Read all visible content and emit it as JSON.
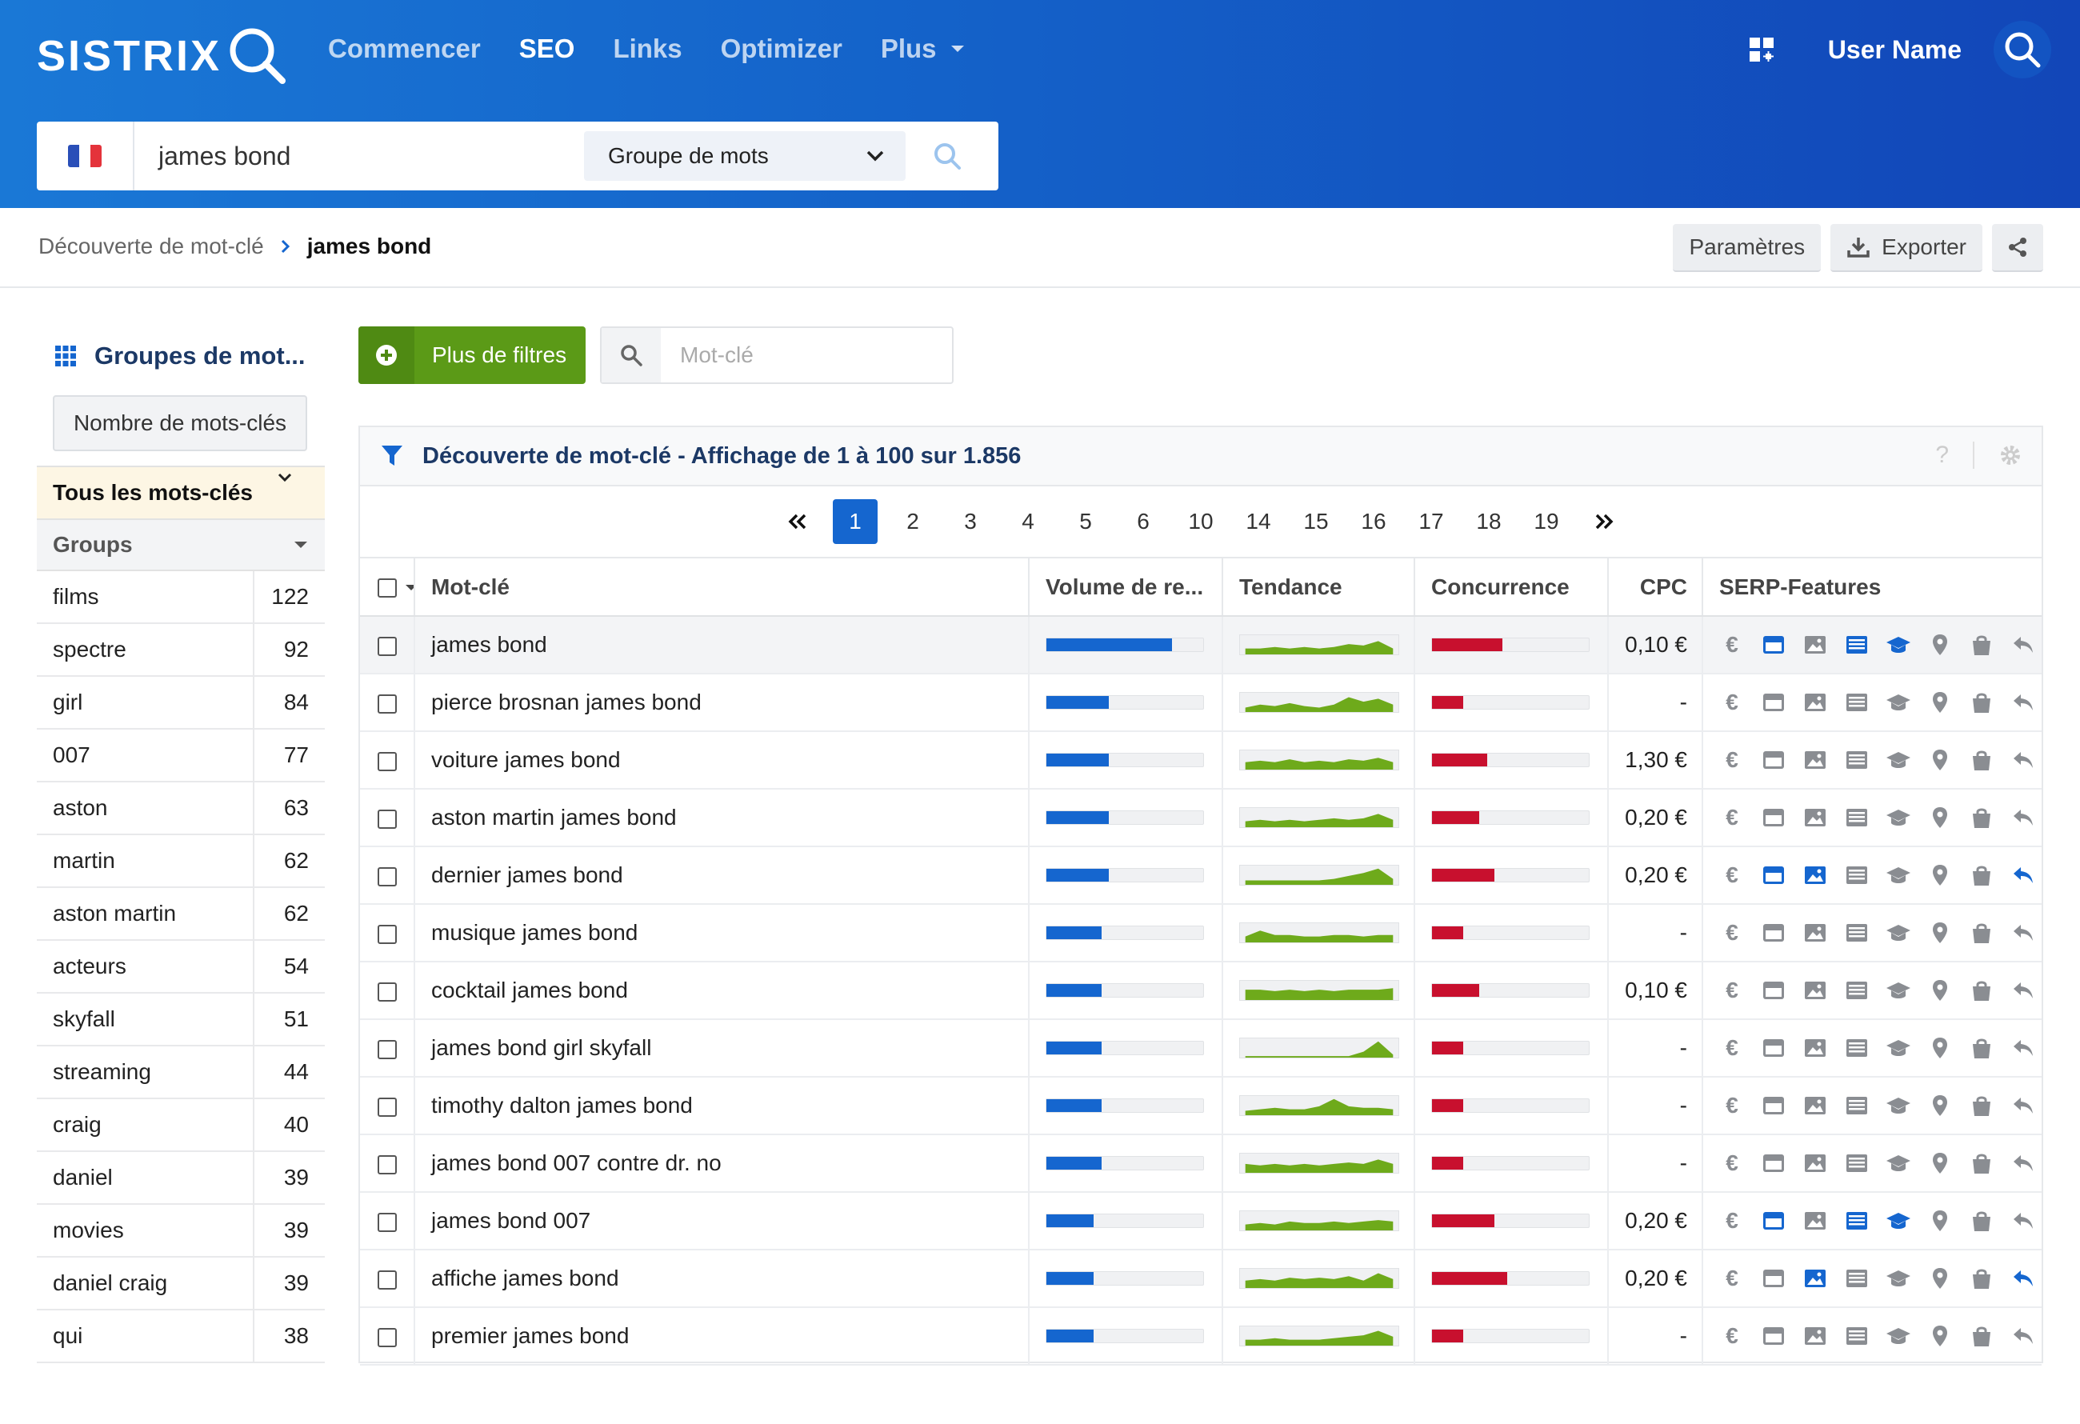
{
  "header": {
    "logo": "SISTRIX",
    "nav": [
      "Commencer",
      "SEO",
      "Links",
      "Optimizer",
      "Plus"
    ],
    "active_nav": "SEO",
    "user_name": "User Name"
  },
  "search": {
    "country": "France",
    "query": "james bond",
    "mode": "Groupe de mots"
  },
  "breadcrumb": {
    "parent": "Découverte de mot-clé",
    "current": "james bond"
  },
  "actions": {
    "settings": "Paramètres",
    "export": "Exporter"
  },
  "sidebar": {
    "title": "Groupes de mot...",
    "sort_button": "Nombre de mots-clés",
    "all_keywords": "Tous les mots-clés",
    "groups_label": "Groups",
    "groups": [
      {
        "name": "films",
        "count": "122"
      },
      {
        "name": "spectre",
        "count": "92"
      },
      {
        "name": "girl",
        "count": "84"
      },
      {
        "name": "007",
        "count": "77"
      },
      {
        "name": "aston",
        "count": "63"
      },
      {
        "name": "martin",
        "count": "62"
      },
      {
        "name": "aston martin",
        "count": "62"
      },
      {
        "name": "acteurs",
        "count": "54"
      },
      {
        "name": "skyfall",
        "count": "51"
      },
      {
        "name": "streaming",
        "count": "44"
      },
      {
        "name": "craig",
        "count": "40"
      },
      {
        "name": "daniel",
        "count": "39"
      },
      {
        "name": "movies",
        "count": "39"
      },
      {
        "name": "daniel craig",
        "count": "39"
      },
      {
        "name": "qui",
        "count": "38"
      }
    ]
  },
  "filters": {
    "more_filters": "Plus de filtres",
    "keyword_placeholder": "Mot-clé"
  },
  "table": {
    "title": "Découverte de mot-clé - Affichage de 1 à 100 sur 1.856",
    "help": "?",
    "pages": [
      "1",
      "2",
      "3",
      "4",
      "5",
      "6",
      "10",
      "14",
      "15",
      "16",
      "17",
      "18",
      "19"
    ],
    "current_page": "1",
    "columns": {
      "keyword": "Mot-clé",
      "volume": "Volume de re...",
      "trend": "Tendance",
      "competition": "Concurrence",
      "cpc": "CPC",
      "serp": "SERP-Features"
    },
    "rows": [
      {
        "keyword": "james bond",
        "volume": 0.8,
        "competition": 0.45,
        "cpc": "0,10 €",
        "trend": [
          3,
          3,
          4,
          3,
          4,
          3,
          4,
          6,
          5,
          8,
          3
        ],
        "serp_active": [
          1,
          3,
          4
        ]
      },
      {
        "keyword": "pierce brosnan james bond",
        "volume": 0.4,
        "competition": 0.2,
        "cpc": "-",
        "trend": [
          2,
          4,
          3,
          5,
          3,
          2,
          4,
          9,
          6,
          8,
          4
        ],
        "serp_active": []
      },
      {
        "keyword": "voiture james bond",
        "volume": 0.4,
        "competition": 0.35,
        "cpc": "1,30 €",
        "trend": [
          4,
          5,
          4,
          6,
          4,
          5,
          4,
          6,
          5,
          7,
          4
        ],
        "serp_active": []
      },
      {
        "keyword": "aston martin james bond",
        "volume": 0.4,
        "competition": 0.3,
        "cpc": "0,20 €",
        "trend": [
          3,
          4,
          3,
          4,
          3,
          4,
          5,
          4,
          5,
          8,
          4
        ],
        "serp_active": []
      },
      {
        "keyword": "dernier james bond",
        "volume": 0.4,
        "competition": 0.4,
        "cpc": "0,20 €",
        "trend": [
          2,
          2,
          2,
          2,
          2,
          2,
          3,
          5,
          7,
          10,
          3
        ],
        "serp_active": [
          1,
          2,
          7
        ]
      },
      {
        "keyword": "musique james bond",
        "volume": 0.35,
        "competition": 0.2,
        "cpc": "-",
        "trend": [
          3,
          7,
          4,
          4,
          3,
          3,
          4,
          4,
          3,
          4,
          4
        ],
        "serp_active": []
      },
      {
        "keyword": "cocktail james bond",
        "volume": 0.35,
        "competition": 0.3,
        "cpc": "0,10 €",
        "trend": [
          6,
          6,
          5,
          6,
          5,
          6,
          5,
          6,
          6,
          6,
          7
        ],
        "serp_active": []
      },
      {
        "keyword": "james bond girl skyfall",
        "volume": 0.35,
        "competition": 0.2,
        "cpc": "-",
        "trend": [
          0,
          0,
          0,
          0,
          0,
          0,
          0,
          0,
          3,
          10,
          1
        ],
        "serp_active": []
      },
      {
        "keyword": "timothy dalton james bond",
        "volume": 0.35,
        "competition": 0.2,
        "cpc": "-",
        "trend": [
          2,
          3,
          4,
          3,
          3,
          5,
          10,
          5,
          4,
          4,
          3
        ],
        "serp_active": []
      },
      {
        "keyword": "james bond 007 contre dr. no",
        "volume": 0.35,
        "competition": 0.2,
        "cpc": "-",
        "trend": [
          5,
          4,
          5,
          4,
          5,
          4,
          5,
          6,
          5,
          8,
          5
        ],
        "serp_active": []
      },
      {
        "keyword": "james bond 007",
        "volume": 0.3,
        "competition": 0.4,
        "cpc": "0,20 €",
        "trend": [
          3,
          4,
          3,
          5,
          4,
          4,
          5,
          4,
          5,
          6,
          5
        ],
        "serp_active": [
          1,
          3,
          4
        ]
      },
      {
        "keyword": "affiche james bond",
        "volume": 0.3,
        "competition": 0.48,
        "cpc": "0,20 €",
        "trend": [
          4,
          5,
          4,
          6,
          5,
          6,
          5,
          7,
          4,
          9,
          5
        ],
        "serp_active": [
          2,
          7
        ]
      },
      {
        "keyword": "premier james bond",
        "volume": 0.3,
        "competition": 0.2,
        "cpc": "-",
        "trend": [
          3,
          3,
          4,
          3,
          3,
          3,
          4,
          5,
          6,
          9,
          5
        ],
        "serp_active": []
      }
    ],
    "serp_icons": [
      "euro-icon",
      "ad-banner-icon",
      "image-icon",
      "list-icon",
      "education-icon",
      "location-icon",
      "shopping-icon",
      "reply-icon"
    ],
    "serp_symbols": [
      "€",
      "",
      "",
      "",
      "",
      "",
      "",
      ""
    ]
  },
  "colors": {
    "header_from": "#1a78d6",
    "header_to": "#1246b8",
    "volume_bar": "#1566cf",
    "trend": "#6eaa1b",
    "competition_bar": "#c8102e",
    "serp_active": "#1566cf",
    "serp_inactive": "#8a8d92"
  }
}
